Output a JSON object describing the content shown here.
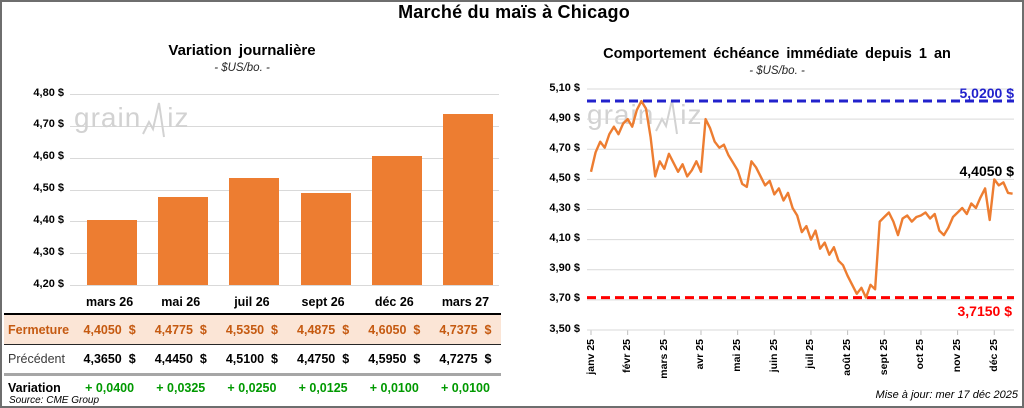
{
  "page": {
    "title": "Marché du maïs à Chicago",
    "source_note": "Source: CME Group",
    "updated_note": "Mise à jour: mer 17 déc 2025",
    "watermark": {
      "left": "grain",
      "right": "iz"
    }
  },
  "colors": {
    "accent_orange": "#ED7D31",
    "fermeture_text": "#C55A11",
    "fermeture_bg": "#FBE5D6",
    "variation_green": "#009900",
    "max_line_blue": "#2222CC",
    "min_line_red": "#FF0000",
    "gridline_gray": "#D9D9D9",
    "tick_gray": "#BFBFBF",
    "watermark_gray": "#D2D2D2"
  },
  "table": {
    "columns": [
      "mars 26",
      "mai 26",
      "juil 26",
      "sept 26",
      "déc 26",
      "mars 27"
    ],
    "rows": [
      {
        "id": "fermeture",
        "label": "Fermeture",
        "values": [
          "4,4050  $",
          "4,4775  $",
          "4,5350  $",
          "4,4875  $",
          "4,6050  $",
          "4,7375  $"
        ]
      },
      {
        "id": "precedent",
        "label": "Précédent",
        "values": [
          "4,3650  $",
          "4,4450  $",
          "4,5100  $",
          "4,4750  $",
          "4,5950  $",
          "4,7275  $"
        ]
      },
      {
        "id": "variation",
        "label": "Variation",
        "values": [
          "+ 0,0400",
          "+ 0,0325",
          "+ 0,0250",
          "+ 0,0125",
          "+ 0,0100",
          "+ 0,0100"
        ]
      }
    ]
  },
  "chart_data": [
    {
      "type": "bar",
      "title": "Variation journalière",
      "subtitle": "- $US/bo. -",
      "categories": [
        "mars 26",
        "mai 26",
        "juil 26",
        "sept 26",
        "déc 26",
        "mars 27"
      ],
      "values": [
        4.405,
        4.4775,
        4.535,
        4.4875,
        4.605,
        4.7375
      ],
      "ylim": [
        4.2,
        4.8
      ],
      "ytick_step": 0.1,
      "ytick_labels": [
        "4,80 $",
        "4,70 $",
        "4,60 $",
        "4,50 $",
        "4,40 $",
        "4,30 $",
        "4,20 $"
      ],
      "grid": true,
      "legend": "none"
    },
    {
      "type": "line",
      "title": "Comportement échéance immédiate depuis 1 an",
      "subtitle": "- $US/bo. -",
      "x_tick_labels": [
        "janv 25",
        "févr 25",
        "mars 25",
        "avr 25",
        "mai 25",
        "juin 25",
        "juil 25",
        "août 25",
        "sept 25",
        "oct 25",
        "nov 25",
        "déc 25"
      ],
      "x_span_months": 11.5,
      "ylim": [
        3.5,
        5.1
      ],
      "ytick_step": 0.2,
      "ytick_labels": [
        "5,10 $",
        "4,90 $",
        "4,70 $",
        "4,50 $",
        "4,30 $",
        "4,10 $",
        "3,90 $",
        "3,70 $",
        "3,50 $"
      ],
      "grid": true,
      "legend": "none",
      "max_line": {
        "value": 5.02,
        "label": "5,0200 $"
      },
      "min_line": {
        "value": 3.715,
        "label": "3,7150 $"
      },
      "last_point": {
        "value": 4.405,
        "label": "4,4050 $"
      },
      "values": [
        4.55,
        4.68,
        4.75,
        4.71,
        4.8,
        4.85,
        4.8,
        4.87,
        4.9,
        4.85,
        4.96,
        5.02,
        4.97,
        4.78,
        4.52,
        4.62,
        4.57,
        4.67,
        4.61,
        4.55,
        4.6,
        4.52,
        4.56,
        4.62,
        4.55,
        4.9,
        4.84,
        4.75,
        4.71,
        4.73,
        4.66,
        4.61,
        4.56,
        4.47,
        4.45,
        4.62,
        4.58,
        4.52,
        4.46,
        4.49,
        4.4,
        4.44,
        4.36,
        4.41,
        4.31,
        4.26,
        4.15,
        4.19,
        4.1,
        4.16,
        4.04,
        4.08,
        4.0,
        4.05,
        3.96,
        3.93,
        3.86,
        3.8,
        3.74,
        3.78,
        3.715,
        3.8,
        3.77,
        4.22,
        4.25,
        4.28,
        4.22,
        4.13,
        4.24,
        4.26,
        4.22,
        4.25,
        4.26,
        4.28,
        4.24,
        4.27,
        4.16,
        4.13,
        4.18,
        4.25,
        4.28,
        4.31,
        4.27,
        4.34,
        4.31,
        4.38,
        4.44,
        4.23,
        4.5,
        4.46,
        4.48,
        4.41,
        4.405
      ]
    }
  ]
}
